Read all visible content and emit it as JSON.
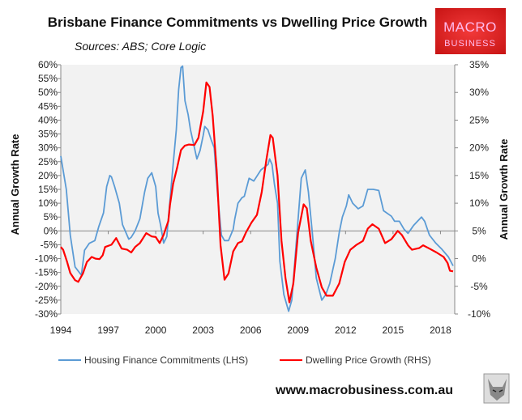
{
  "chart_data": {
    "type": "line",
    "title": "Brisbane Finance Commitments vs Dwelling Price Growth",
    "subtitle": "Sources: ABS; Core Logic",
    "ylabel_left": "Annual Growth Rate",
    "ylabel_right": "Annual Growth Rate",
    "xlim": [
      1994,
      2018.9
    ],
    "ylim_left": [
      -30,
      60
    ],
    "ylim_right": [
      -10,
      35
    ],
    "x_ticks": [
      "1994",
      "1997",
      "2000",
      "2003",
      "2006",
      "2009",
      "2012",
      "2015",
      "2018"
    ],
    "y_ticks_left": [
      "60%",
      "55%",
      "50%",
      "45%",
      "40%",
      "35%",
      "30%",
      "25%",
      "20%",
      "15%",
      "10%",
      "5%",
      "0%",
      "-5%",
      "-10%",
      "-15%",
      "-20%",
      "-25%",
      "-30%"
    ],
    "y_ticks_right": [
      "35%",
      "30%",
      "25%",
      "20%",
      "15%",
      "10%",
      "5%",
      "0%",
      "-5%",
      "-10%"
    ],
    "grid": false,
    "legend_position": "bottom",
    "series": [
      {
        "name": "Housing Finance Commitments (LHS)",
        "axis": "left",
        "color": "#5b9bd5",
        "points": [
          [
            1994.0,
            27
          ],
          [
            1994.35,
            15
          ],
          [
            1994.6,
            -1.5
          ],
          [
            1994.9,
            -13
          ],
          [
            1995.3,
            -16
          ],
          [
            1995.5,
            -7
          ],
          [
            1995.8,
            -4.5
          ],
          [
            1996.15,
            -3.5
          ],
          [
            1996.4,
            1.5
          ],
          [
            1996.7,
            6.5
          ],
          [
            1996.9,
            16
          ],
          [
            1997.1,
            20
          ],
          [
            1997.2,
            19.5
          ],
          [
            1997.4,
            16
          ],
          [
            1997.7,
            10
          ],
          [
            1997.9,
            2.3
          ],
          [
            1998.3,
            -3
          ],
          [
            1998.45,
            -2.3
          ],
          [
            1998.7,
            0
          ],
          [
            1999.0,
            4.4
          ],
          [
            1999.3,
            14
          ],
          [
            1999.5,
            19
          ],
          [
            1999.75,
            21
          ],
          [
            2000.0,
            16
          ],
          [
            2000.15,
            6.4
          ],
          [
            2000.3,
            2.3
          ],
          [
            2000.5,
            -4.4
          ],
          [
            2000.7,
            -2
          ],
          [
            2000.8,
            4.4
          ],
          [
            2001.1,
            24
          ],
          [
            2001.3,
            36.5
          ],
          [
            2001.45,
            51
          ],
          [
            2001.6,
            59
          ],
          [
            2001.7,
            59.5
          ],
          [
            2001.85,
            47
          ],
          [
            2002.05,
            42
          ],
          [
            2002.2,
            36.5
          ],
          [
            2002.45,
            30
          ],
          [
            2002.6,
            26
          ],
          [
            2002.8,
            29
          ],
          [
            2003.0,
            34.5
          ],
          [
            2003.1,
            37.7
          ],
          [
            2003.3,
            36.5
          ],
          [
            2003.5,
            33
          ],
          [
            2003.7,
            30
          ],
          [
            2003.9,
            14
          ],
          [
            2004.15,
            -1.5
          ],
          [
            2004.35,
            -3.5
          ],
          [
            2004.6,
            -3.5
          ],
          [
            2004.9,
            0.6
          ],
          [
            2005.0,
            4.4
          ],
          [
            2005.2,
            10
          ],
          [
            2005.45,
            12
          ],
          [
            2005.6,
            12.5
          ],
          [
            2005.9,
            19
          ],
          [
            2006.2,
            18
          ],
          [
            2006.65,
            22
          ],
          [
            2007.1,
            24
          ],
          [
            2007.2,
            26
          ],
          [
            2007.35,
            24
          ],
          [
            2007.5,
            17
          ],
          [
            2007.7,
            10
          ],
          [
            2007.85,
            -11
          ],
          [
            2008.1,
            -23
          ],
          [
            2008.4,
            -29
          ],
          [
            2008.6,
            -25
          ],
          [
            2009.0,
            4.4
          ],
          [
            2009.2,
            19
          ],
          [
            2009.45,
            22
          ],
          [
            2009.65,
            14
          ],
          [
            2009.9,
            -0.6
          ],
          [
            2010.15,
            -17
          ],
          [
            2010.5,
            -25
          ],
          [
            2010.75,
            -23
          ],
          [
            2011.0,
            -19
          ],
          [
            2011.35,
            -10
          ],
          [
            2011.6,
            -0.6
          ],
          [
            2011.8,
            5
          ],
          [
            2012.05,
            9
          ],
          [
            2012.2,
            13
          ],
          [
            2012.45,
            10
          ],
          [
            2012.8,
            8
          ],
          [
            2013.1,
            9
          ],
          [
            2013.4,
            15
          ],
          [
            2013.75,
            15
          ],
          [
            2014.1,
            14.6
          ],
          [
            2014.4,
            7.3
          ],
          [
            2014.9,
            5.3
          ],
          [
            2015.1,
            3.5
          ],
          [
            2015.4,
            3.5
          ],
          [
            2015.7,
            0.6
          ],
          [
            2015.95,
            -0.9
          ],
          [
            2016.3,
            2
          ],
          [
            2016.55,
            3.5
          ],
          [
            2016.8,
            5
          ],
          [
            2017.0,
            3.5
          ],
          [
            2017.3,
            -1.5
          ],
          [
            2017.7,
            -4.4
          ],
          [
            2018.1,
            -6.7
          ],
          [
            2018.5,
            -9.4
          ],
          [
            2018.8,
            -12.6
          ]
        ]
      },
      {
        "name": "Dwelling Price Growth (RHS)",
        "axis": "right",
        "color": "#ff0000",
        "points": [
          [
            1994.0,
            2.1
          ],
          [
            1994.15,
            1.6
          ],
          [
            1994.4,
            -0.6
          ],
          [
            1994.6,
            -2.6
          ],
          [
            1994.9,
            -3.9
          ],
          [
            1995.1,
            -4.2
          ],
          [
            1995.4,
            -2.7
          ],
          [
            1995.65,
            -0.6
          ],
          [
            1995.95,
            0.3
          ],
          [
            1996.2,
            0
          ],
          [
            1996.45,
            -0.1
          ],
          [
            1996.65,
            0.6
          ],
          [
            1996.8,
            2.1
          ],
          [
            1997.2,
            2.5
          ],
          [
            1997.5,
            3.7
          ],
          [
            1997.85,
            1.8
          ],
          [
            1998.2,
            1.6
          ],
          [
            1998.45,
            1.1
          ],
          [
            1998.7,
            2.1
          ],
          [
            1999.0,
            2.8
          ],
          [
            1999.4,
            4.6
          ],
          [
            1999.75,
            4
          ],
          [
            2000.0,
            3.9
          ],
          [
            2000.25,
            2.8
          ],
          [
            2000.5,
            4.3
          ],
          [
            2000.8,
            6.8
          ],
          [
            2000.9,
            9.7
          ],
          [
            2001.1,
            13.5
          ],
          [
            2001.35,
            16.4
          ],
          [
            2001.6,
            19.6
          ],
          [
            2001.85,
            20.4
          ],
          [
            2002.1,
            20.6
          ],
          [
            2002.45,
            20.5
          ],
          [
            2002.7,
            21.8
          ],
          [
            2003.0,
            26.6
          ],
          [
            2003.2,
            31.8
          ],
          [
            2003.4,
            31
          ],
          [
            2003.6,
            25.8
          ],
          [
            2003.85,
            16
          ],
          [
            2004.1,
            2.4
          ],
          [
            2004.35,
            -3.8
          ],
          [
            2004.6,
            -2.7
          ],
          [
            2004.9,
            1.3
          ],
          [
            2005.2,
            2.8
          ],
          [
            2005.45,
            3.1
          ],
          [
            2005.7,
            4.7
          ],
          [
            2006.05,
            6.5
          ],
          [
            2006.4,
            7.9
          ],
          [
            2006.7,
            12
          ],
          [
            2007.0,
            17.9
          ],
          [
            2007.25,
            22.3
          ],
          [
            2007.4,
            21.8
          ],
          [
            2007.7,
            15
          ],
          [
            2007.95,
            3.2
          ],
          [
            2008.2,
            -3.5
          ],
          [
            2008.45,
            -7.9
          ],
          [
            2008.7,
            -4.5
          ],
          [
            2009.0,
            4.7
          ],
          [
            2009.35,
            9.8
          ],
          [
            2009.55,
            9.1
          ],
          [
            2009.8,
            3.2
          ],
          [
            2010.15,
            -1.6
          ],
          [
            2010.5,
            -5.2
          ],
          [
            2010.8,
            -6.7
          ],
          [
            2011.2,
            -6.7
          ],
          [
            2011.6,
            -4.5
          ],
          [
            2011.95,
            -0.6
          ],
          [
            2012.3,
            1.6
          ],
          [
            2012.7,
            2.5
          ],
          [
            2013.1,
            3.2
          ],
          [
            2013.4,
            5.4
          ],
          [
            2013.7,
            6.2
          ],
          [
            2014.1,
            5.4
          ],
          [
            2014.5,
            2.8
          ],
          [
            2014.9,
            3.5
          ],
          [
            2015.3,
            5
          ],
          [
            2015.55,
            4.3
          ],
          [
            2015.95,
            2.4
          ],
          [
            2016.2,
            1.6
          ],
          [
            2016.65,
            1.9
          ],
          [
            2016.9,
            2.4
          ],
          [
            2017.3,
            1.8
          ],
          [
            2017.75,
            1.1
          ],
          [
            2018.2,
            0.3
          ],
          [
            2018.45,
            -0.8
          ],
          [
            2018.6,
            -2.2
          ],
          [
            2018.8,
            -2.3
          ]
        ]
      }
    ]
  },
  "logo": {
    "line1": "MACRO",
    "line2": "BUSINESS"
  },
  "footer": {
    "url": "www.macrobusiness.com.au"
  }
}
